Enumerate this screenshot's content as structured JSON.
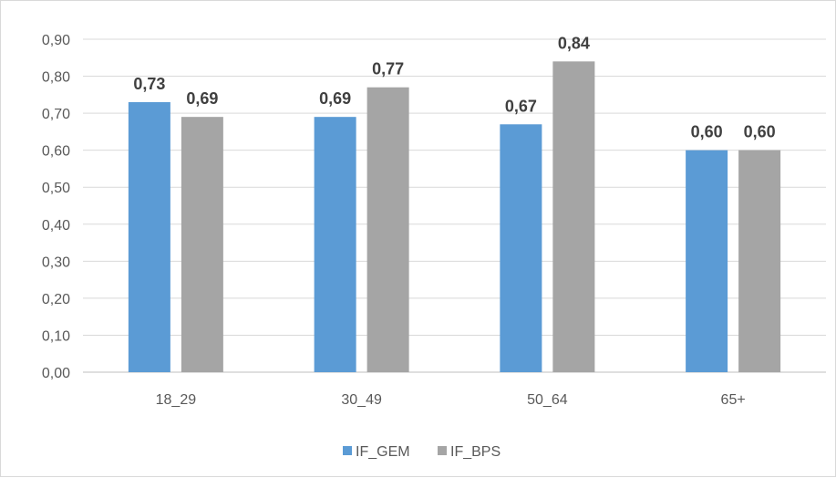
{
  "chart_data": {
    "type": "bar",
    "categories": [
      "18_29",
      "30_49",
      "50_64",
      "65+"
    ],
    "series": [
      {
        "name": "IF_GEM",
        "values": [
          0.73,
          0.69,
          0.67,
          0.6
        ],
        "labels": [
          "0,73",
          "0,69",
          "0,67",
          "0,60"
        ],
        "color": "#5b9bd5"
      },
      {
        "name": "IF_BPS",
        "values": [
          0.69,
          0.77,
          0.84,
          0.6
        ],
        "labels": [
          "0,69",
          "0,77",
          "0,84",
          "0,60"
        ],
        "color": "#a5a5a5"
      }
    ],
    "yticks": [
      "0,00",
      "0,10",
      "0,20",
      "0,30",
      "0,40",
      "0,50",
      "0,60",
      "0,70",
      "0,80",
      "0,90"
    ],
    "ylim": [
      0,
      0.9
    ],
    "grid": true,
    "legend_position": "bottom",
    "colors": {
      "gridline": "#d9d9d9",
      "axis": "#bfbfbf",
      "text": "#595959",
      "data_label": "#404040"
    }
  }
}
